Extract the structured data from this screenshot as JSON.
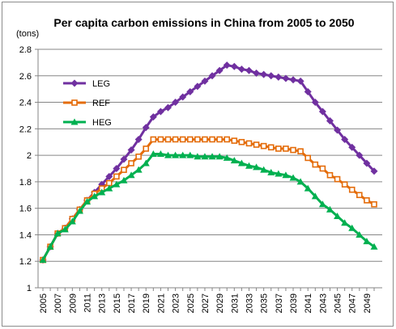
{
  "chart_data": {
    "type": "line",
    "title": "Per capita  carbon emissions in China from 2005 to 2050",
    "ylabel": "(tons)",
    "xlabel": "",
    "ylim": [
      1,
      2.8
    ],
    "yticks": [
      "1",
      "1.2",
      "1.4",
      "1.6",
      "1.8",
      "2",
      "2.2",
      "2.4",
      "2.6",
      "2.8"
    ],
    "ytick_values": [
      1,
      1.2,
      1.4,
      1.6,
      1.8,
      2,
      2.2,
      2.4,
      2.6,
      2.8
    ],
    "grid": "horizontal",
    "legend_position": "top-left",
    "x": [
      2005,
      2006,
      2007,
      2008,
      2009,
      2010,
      2011,
      2012,
      2013,
      2014,
      2015,
      2016,
      2017,
      2018,
      2019,
      2020,
      2021,
      2022,
      2023,
      2024,
      2025,
      2026,
      2027,
      2028,
      2029,
      2030,
      2031,
      2032,
      2033,
      2034,
      2035,
      2036,
      2037,
      2038,
      2039,
      2040,
      2041,
      2042,
      2043,
      2044,
      2045,
      2046,
      2047,
      2048,
      2049,
      2050
    ],
    "xtick_labels": [
      "2005",
      "2007",
      "2009",
      "2011",
      "2013",
      "2015",
      "2017",
      "2019",
      "2021",
      "2023",
      "2025",
      "2027",
      "2029",
      "2031",
      "2033",
      "2035",
      "2037",
      "2039",
      "2041",
      "2043",
      "2045",
      "2047",
      "2049"
    ],
    "series": [
      {
        "name": "LEG",
        "color": "#7030a0",
        "marker": "diamond",
        "values": [
          1.21,
          1.31,
          1.41,
          1.45,
          1.52,
          1.59,
          1.66,
          1.72,
          1.78,
          1.84,
          1.9,
          1.97,
          2.04,
          2.12,
          2.21,
          2.29,
          2.33,
          2.36,
          2.4,
          2.44,
          2.48,
          2.52,
          2.56,
          2.6,
          2.64,
          2.68,
          2.67,
          2.65,
          2.64,
          2.62,
          2.61,
          2.6,
          2.59,
          2.58,
          2.57,
          2.56,
          2.48,
          2.4,
          2.33,
          2.26,
          2.19,
          2.12,
          2.06,
          2.0,
          1.94,
          1.88
        ]
      },
      {
        "name": "REF",
        "color": "#e46c0a",
        "marker": "square",
        "values": [
          1.21,
          1.31,
          1.41,
          1.45,
          1.52,
          1.59,
          1.66,
          1.71,
          1.75,
          1.79,
          1.84,
          1.89,
          1.94,
          1.99,
          2.05,
          2.12,
          2.12,
          2.12,
          2.12,
          2.12,
          2.12,
          2.12,
          2.12,
          2.12,
          2.12,
          2.12,
          2.11,
          2.1,
          2.09,
          2.08,
          2.07,
          2.06,
          2.05,
          2.05,
          2.04,
          2.03,
          1.98,
          1.93,
          1.9,
          1.85,
          1.82,
          1.78,
          1.74,
          1.7,
          1.66,
          1.63
        ]
      },
      {
        "name": "HEG",
        "color": "#00b050",
        "marker": "triangle",
        "values": [
          1.21,
          1.31,
          1.41,
          1.44,
          1.5,
          1.58,
          1.65,
          1.69,
          1.72,
          1.75,
          1.78,
          1.81,
          1.85,
          1.89,
          1.94,
          2.01,
          2.01,
          2.0,
          2.0,
          2.0,
          2.0,
          1.99,
          1.99,
          1.99,
          1.99,
          1.98,
          1.96,
          1.94,
          1.92,
          1.91,
          1.89,
          1.87,
          1.86,
          1.85,
          1.83,
          1.8,
          1.75,
          1.69,
          1.63,
          1.59,
          1.54,
          1.49,
          1.45,
          1.4,
          1.35,
          1.31
        ]
      }
    ]
  }
}
